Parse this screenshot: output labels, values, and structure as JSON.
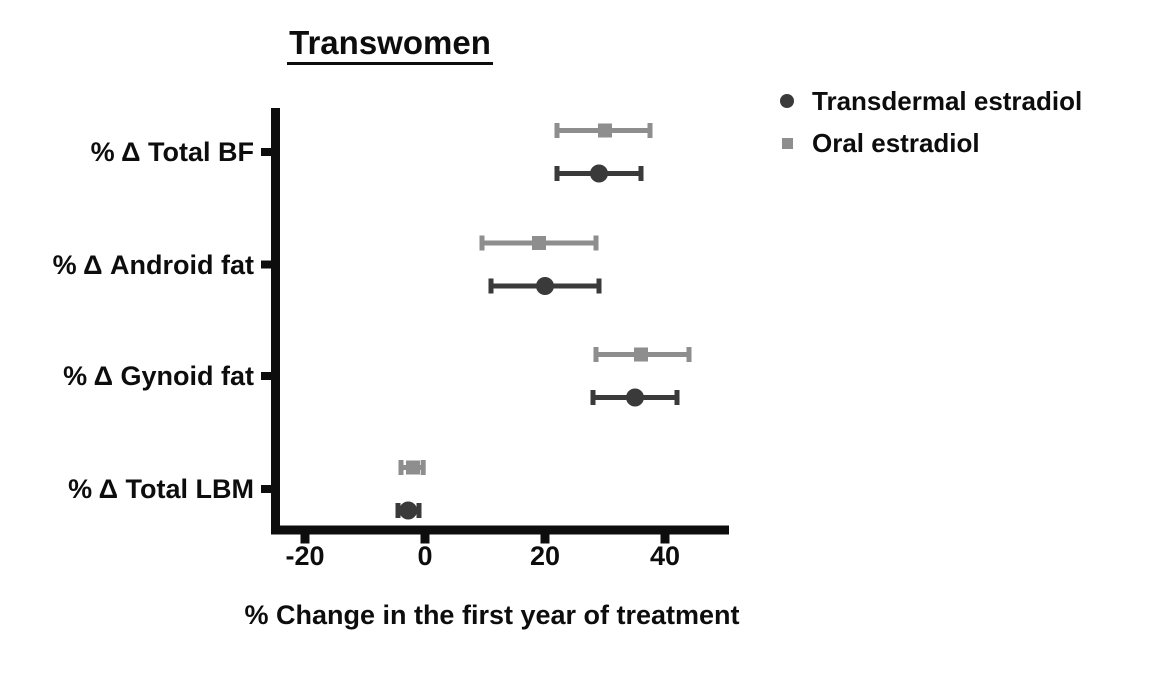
{
  "figure": {
    "background": "#ffffff",
    "text_color": "#0d0d0d",
    "axis_color": "#0d0d0d"
  },
  "chart_data": {
    "type": "scatter",
    "subtype": "horizontal-dot-plot-with-error-bars",
    "title": "Transwomen",
    "xlabel": "% Change in the first year of treatment",
    "ylabel": "",
    "categories": [
      "% Δ Total BF",
      "% Δ Android fat",
      "% Δ Gynoid fat",
      "% Δ Total LBM"
    ],
    "x_ticks": [
      "-20",
      "0",
      "20",
      "40"
    ],
    "xlim": [
      -25.5,
      50.5
    ],
    "grid": false,
    "legend_position": "top-right",
    "error_bars": true,
    "series": [
      {
        "name": "Transdermal estradiol",
        "marker": "circle",
        "color": "#3a3a3a",
        "points": [
          {
            "category": "% Δ Total BF",
            "mean": 29,
            "low": 22,
            "high": 36
          },
          {
            "category": "% Δ Android fat",
            "mean": 20,
            "low": 11,
            "high": 29
          },
          {
            "category": "% Δ Gynoid fat",
            "mean": 35,
            "low": 28,
            "high": 42
          },
          {
            "category": "% Δ Total LBM",
            "mean": -2.8,
            "low": -4.5,
            "high": -1
          }
        ]
      },
      {
        "name": "Oral estradiol",
        "marker": "square",
        "color": "#8e8e8e",
        "points": [
          {
            "category": "% Δ Total BF",
            "mean": 30,
            "low": 22,
            "high": 37.5
          },
          {
            "category": "% Δ Android fat",
            "mean": 19,
            "low": 9.5,
            "high": 28.5
          },
          {
            "category": "% Δ Gynoid fat",
            "mean": 36,
            "low": 28.5,
            "high": 44
          },
          {
            "category": "% Δ Total LBM",
            "mean": -2,
            "low": -4,
            "high": -0.3
          }
        ]
      }
    ]
  }
}
